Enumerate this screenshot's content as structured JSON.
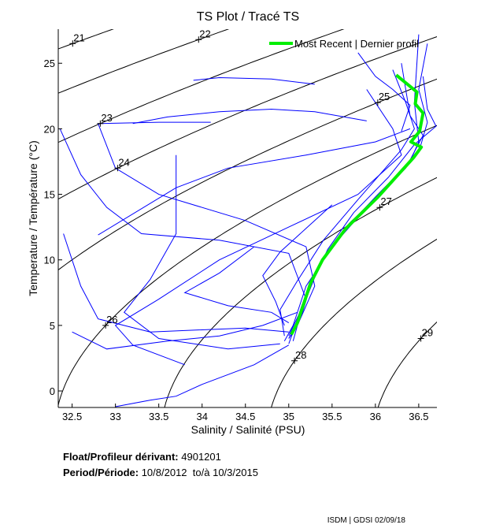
{
  "chart_data": {
    "type": "line",
    "title": "TS Plot / Tracé TS",
    "xlabel": "Salinity / Salinité (PSU)",
    "ylabel": "Temperature / Température (°C)",
    "xlim": [
      32.34,
      36.71
    ],
    "ylim": [
      -1.26,
      27.6
    ],
    "xticks": [
      32.5,
      33,
      33.5,
      34,
      34.5,
      35,
      35.5,
      36,
      36.5
    ],
    "xtick_labels": [
      "32.5",
      "33",
      "33.5",
      "34",
      "34.5",
      "35",
      "35.5",
      "36",
      "36.5"
    ],
    "yticks": [
      0,
      5,
      10,
      15,
      20,
      25
    ],
    "ytick_labels": [
      "0",
      "5",
      "10",
      "15",
      "20",
      "25"
    ],
    "grid": false,
    "legend": {
      "position": "top-right",
      "entries": [
        {
          "label": "Most Recent | Dernier profil",
          "color": "#00ee00"
        }
      ]
    },
    "density_contours": {
      "levels": [
        21,
        22,
        23,
        24,
        25,
        26,
        27,
        28,
        29
      ],
      "labels": [
        "21",
        "22",
        "23",
        "24",
        "25",
        "26",
        "27",
        "28",
        "29"
      ],
      "label_temperatures": [
        26.5,
        26.8,
        20.4,
        17.0,
        22.0,
        5.0,
        14.0,
        2.3,
        4.0
      ],
      "color": "#000000"
    },
    "profile_color": "#0000ff",
    "profiles": [
      [
        [
          36.5,
          27.2
        ],
        [
          36.45,
          22
        ],
        [
          36.5,
          19
        ],
        [
          36.4,
          17.5
        ],
        [
          36.0,
          14.8
        ],
        [
          35.6,
          12
        ],
        [
          35.3,
          9
        ],
        [
          35.15,
          6.5
        ],
        [
          35.05,
          4.5
        ],
        [
          35.0,
          3.6
        ]
      ],
      [
        [
          36.3,
          25
        ],
        [
          36.4,
          21
        ],
        [
          36.55,
          19.5
        ],
        [
          36.35,
          17
        ],
        [
          35.9,
          14
        ],
        [
          35.5,
          11
        ],
        [
          35.2,
          8
        ],
        [
          35.05,
          5
        ],
        [
          34.95,
          3.8
        ]
      ],
      [
        [
          36.6,
          26.5
        ],
        [
          36.5,
          23
        ],
        [
          36.6,
          20.5
        ],
        [
          36.5,
          18.2
        ],
        [
          36.1,
          15.3
        ],
        [
          35.7,
          12.8
        ],
        [
          35.35,
          9.5
        ],
        [
          35.2,
          7
        ],
        [
          35.1,
          5
        ],
        [
          35.05,
          3.8
        ]
      ],
      [
        [
          36.2,
          24.5
        ],
        [
          36.35,
          22
        ],
        [
          36.45,
          20
        ],
        [
          36.3,
          18.4
        ],
        [
          35.8,
          14.6
        ],
        [
          35.4,
          11.5
        ],
        [
          35.1,
          8.4
        ],
        [
          34.9,
          6.2
        ],
        [
          34.95,
          4.2
        ]
      ],
      [
        [
          36.55,
          24
        ],
        [
          36.6,
          21.5
        ],
        [
          36.7,
          20.2
        ],
        [
          36.45,
          18.8
        ],
        [
          36.15,
          16.3
        ],
        [
          35.75,
          13.6
        ],
        [
          35.45,
          10.8
        ],
        [
          35.25,
          8
        ],
        [
          35.15,
          5.8
        ],
        [
          35.0,
          4
        ]
      ],
      [
        [
          35.9,
          23
        ],
        [
          36.2,
          20
        ],
        [
          36.3,
          18
        ],
        [
          35.8,
          15
        ],
        [
          35.0,
          12.5
        ],
        [
          34.2,
          10
        ],
        [
          33.5,
          7
        ],
        [
          33.0,
          5
        ],
        [
          33.2,
          3.5
        ],
        [
          33.8,
          2.0
        ]
      ],
      [
        [
          34.1,
          20.5
        ],
        [
          33.5,
          20.5
        ],
        [
          32.8,
          20.4
        ],
        [
          33.0,
          17
        ],
        [
          33.5,
          15
        ],
        [
          34.5,
          13
        ],
        [
          35.2,
          11
        ],
        [
          35.3,
          8
        ],
        [
          35.1,
          5
        ],
        [
          35.0,
          4
        ]
      ],
      [
        [
          32.36,
          20
        ],
        [
          32.6,
          16.5
        ],
        [
          32.9,
          14
        ],
        [
          33.3,
          12
        ],
        [
          34.2,
          11.5
        ],
        [
          35.0,
          10.5
        ],
        [
          35.2,
          7
        ],
        [
          35.0,
          4.2
        ]
      ],
      [
        [
          35.9,
          20.6
        ],
        [
          35.3,
          21.3
        ],
        [
          34.8,
          21.5
        ],
        [
          34.2,
          21.3
        ],
        [
          33.6,
          20.9
        ],
        [
          33.2,
          20.4
        ]
      ],
      [
        [
          35.3,
          23.4
        ],
        [
          34.8,
          23.8
        ],
        [
          34.2,
          23.9
        ],
        [
          33.9,
          23.7
        ]
      ],
      [
        [
          32.4,
          12
        ],
        [
          32.6,
          8
        ],
        [
          32.8,
          5.5
        ],
        [
          33.4,
          4.5
        ],
        [
          34.5,
          4.8
        ],
        [
          35.0,
          4.5
        ]
      ],
      [
        [
          33.0,
          -1.2
        ],
        [
          33.4,
          -0.7
        ],
        [
          33.7,
          -0.4
        ],
        [
          34.0,
          0.5
        ],
        [
          34.6,
          2
        ],
        [
          35.0,
          3.5
        ]
      ],
      [
        [
          33.7,
          18
        ],
        [
          33.7,
          12
        ],
        [
          33.4,
          8.5
        ],
        [
          33.1,
          6
        ],
        [
          33.5,
          4
        ],
        [
          34.3,
          3.2
        ],
        [
          34.9,
          3.6
        ]
      ],
      [
        [
          32.8,
          11.9
        ],
        [
          33.7,
          15.5
        ],
        [
          34.3,
          17
        ],
        [
          35.2,
          18
        ],
        [
          36.0,
          19
        ],
        [
          36.4,
          20
        ]
      ],
      [
        [
          32.5,
          4.5
        ],
        [
          32.9,
          3.2
        ],
        [
          33.6,
          3.8
        ],
        [
          34.2,
          4.2
        ],
        [
          34.7,
          5
        ],
        [
          35.1,
          6
        ]
      ],
      [
        [
          34.6,
          11
        ],
        [
          34.2,
          9
        ],
        [
          33.8,
          7.5
        ],
        [
          34.3,
          6.5
        ],
        [
          34.8,
          6
        ],
        [
          35.0,
          5.2
        ]
      ],
      [
        [
          35.8,
          25.8
        ],
        [
          36.0,
          24
        ],
        [
          36.2,
          23
        ],
        [
          36.4,
          21.8
        ],
        [
          36.3,
          19.8
        ]
      ],
      [
        [
          35.5,
          14.2
        ],
        [
          35.2,
          12.4
        ],
        [
          34.9,
          10.6
        ],
        [
          34.7,
          8.8
        ],
        [
          34.85,
          6.8
        ],
        [
          34.95,
          5
        ]
      ]
    ],
    "most_recent_profile": [
      [
        36.24,
        24.1
      ],
      [
        36.48,
        22.8
      ],
      [
        36.46,
        21.9
      ],
      [
        36.55,
        21.2
      ],
      [
        36.51,
        19.8
      ],
      [
        36.41,
        19.0
      ],
      [
        36.53,
        18.6
      ],
      [
        36.44,
        17.8
      ],
      [
        36.03,
        14.8
      ],
      [
        35.66,
        12.4
      ],
      [
        35.39,
        10.0
      ],
      [
        35.25,
        8.2
      ],
      [
        35.16,
        6.4
      ],
      [
        35.1,
        5.2
      ],
      [
        35.03,
        4.3
      ]
    ]
  },
  "info": {
    "float_label": "Float/Profileur dérivant:",
    "float_value": "4901201",
    "period_label": "Period/Période:",
    "period_start": "10/8/2012",
    "period_sep": "to/à",
    "period_end": "10/3/2015"
  },
  "credit": "ISDM | GDSI 02/09/18"
}
